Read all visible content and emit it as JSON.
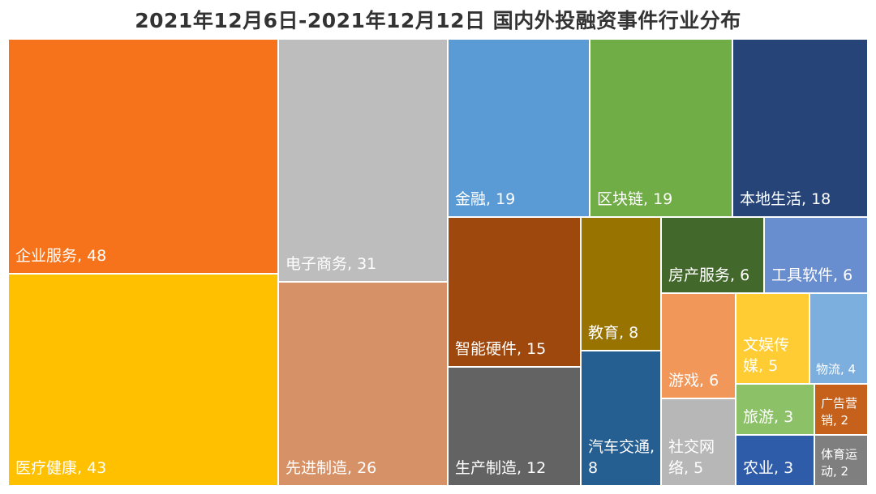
{
  "title": "2021年12月6日-2021年12月12日 国内外投融资事件行业分布",
  "chart_data": {
    "type": "treemap",
    "title": "2021年12月6日-2021年12月12日 国内外投融资事件行业分布",
    "items": [
      {
        "name": "企业服务",
        "value": 48,
        "color": "#F6731B",
        "label": "企业服务, 48"
      },
      {
        "name": "医疗健康",
        "value": 43,
        "color": "#FFC000",
        "label": "医疗健康, 43"
      },
      {
        "name": "电子商务",
        "value": 31,
        "color": "#BDBDBD",
        "label": "电子商务, 31"
      },
      {
        "name": "先进制造",
        "value": 26,
        "color": "#D79166",
        "label": "先进制造, 26"
      },
      {
        "name": "金融",
        "value": 19,
        "color": "#5B9BD5",
        "label": "金融, 19"
      },
      {
        "name": "区块链",
        "value": 19,
        "color": "#70AD47",
        "label": "区块链, 19"
      },
      {
        "name": "本地生活",
        "value": 18,
        "color": "#264478",
        "label": "本地生活, 18"
      },
      {
        "name": "智能硬件",
        "value": 15,
        "color": "#9E480E",
        "label": "智能硬件, 15"
      },
      {
        "name": "生产制造",
        "value": 12,
        "color": "#636363",
        "label": "生产制造, 12"
      },
      {
        "name": "教育",
        "value": 8,
        "color": "#997300",
        "label": "教育, 8"
      },
      {
        "name": "汽车交通",
        "value": 8,
        "color": "#255E91",
        "label": "汽车交通, 8"
      },
      {
        "name": "房产服务",
        "value": 6,
        "color": "#43682B",
        "label": "房产服务, 6"
      },
      {
        "name": "工具软件",
        "value": 6,
        "color": "#698ED0",
        "label": "工具软件, 6"
      },
      {
        "name": "游戏",
        "value": 6,
        "color": "#F1975A",
        "label": "游戏, 6"
      },
      {
        "name": "社交网络",
        "value": 5,
        "color": "#B7B7B7",
        "label": "社交网络, 5"
      },
      {
        "name": "文娱传媒",
        "value": 5,
        "color": "#FFCD33",
        "label": "文娱传媒, 5"
      },
      {
        "name": "物流",
        "value": 4,
        "color": "#7CAFDD",
        "label": "物流, 4"
      },
      {
        "name": "旅游",
        "value": 3,
        "color": "#8CC168",
        "label": "旅游, 3"
      },
      {
        "name": "农业",
        "value": 3,
        "color": "#2E5CA8",
        "label": "农业, 3"
      },
      {
        "name": "广告营销",
        "value": 2,
        "color": "#C5611B",
        "label": "广告营销, 2"
      },
      {
        "name": "体育运动",
        "value": 2,
        "color": "#7F7F7F",
        "label": "体育运动, 2"
      }
    ]
  }
}
